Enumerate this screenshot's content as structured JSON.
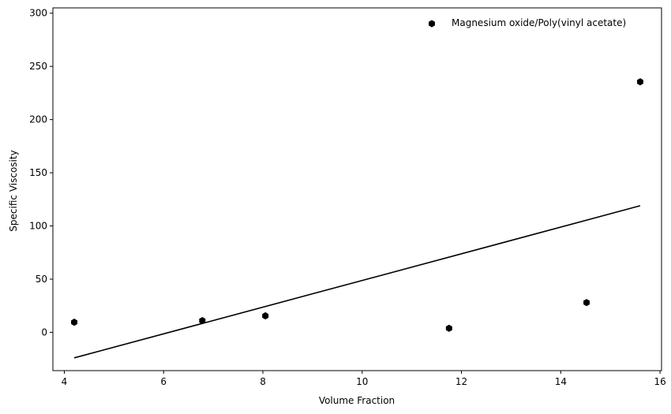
{
  "chart_data": {
    "type": "scatter",
    "title": "",
    "xlabel": "Volume Fraction",
    "ylabel": "Specific Viscosity",
    "xlim": [
      3.77,
      16.03
    ],
    "ylim": [
      -36,
      305
    ],
    "x_ticks": [
      4,
      6,
      8,
      10,
      12,
      14,
      16
    ],
    "y_ticks": [
      0,
      50,
      100,
      150,
      200,
      250,
      300
    ],
    "grid": false,
    "legend_position": "top-right",
    "series": [
      {
        "name": "Magnesium oxide/Poly(vinyl acetate)",
        "kind": "scatter",
        "marker": "hexagon",
        "color": "#000000",
        "points": [
          {
            "x": 4.2,
            "y": 9.5
          },
          {
            "x": 6.78,
            "y": 11.0
          },
          {
            "x": 8.05,
            "y": 15.5
          },
          {
            "x": 11.75,
            "y": 3.8
          },
          {
            "x": 14.52,
            "y": 28.0
          },
          {
            "x": 15.6,
            "y": 235.5
          }
        ]
      },
      {
        "kind": "line",
        "color": "#000000",
        "points": [
          {
            "x": 4.2,
            "y": -24
          },
          {
            "x": 15.6,
            "y": 119
          }
        ]
      }
    ]
  }
}
